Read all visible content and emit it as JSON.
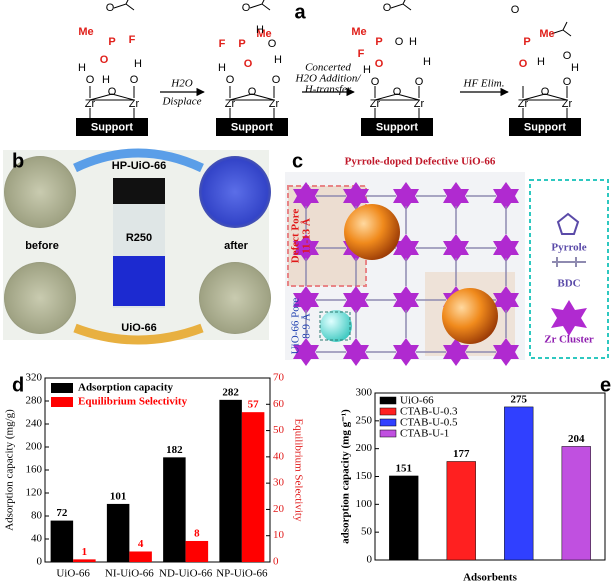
{
  "panel_a": {
    "label": "a",
    "structures": [
      {
        "atoms": [
          "Me",
          "P",
          "F",
          "O",
          "O",
          "H",
          "O",
          "H",
          "O",
          "H",
          "Zr",
          "Zr",
          "O"
        ],
        "support": "Support"
      },
      {
        "atoms": [
          "F",
          "P",
          "Me",
          "O",
          "O",
          "H",
          "O",
          "H",
          "O",
          "H",
          "O",
          "Zr",
          "Zr",
          "O"
        ],
        "support": "Support"
      },
      {
        "atoms": [
          "Me",
          "P",
          "F",
          "O",
          "O",
          "H",
          "O",
          "H",
          "O",
          "H",
          "O",
          "Zr",
          "Zr",
          "O"
        ],
        "support": "Support"
      },
      {
        "atoms": [
          "O",
          "P",
          "O",
          "Me",
          "H",
          "O",
          "H",
          "O",
          "Zr",
          "Zr",
          "O"
        ],
        "support": "Support"
      }
    ],
    "steps": [
      [
        "H2O",
        "Displace"
      ],
      [
        "Concerted",
        "H2O Addition/",
        "H-transfer"
      ],
      [
        "HF Elim."
      ]
    ]
  },
  "panel_b": {
    "label": "b",
    "top": "HP-UiO-66",
    "bottom": "UiO-66",
    "left": "before",
    "right": "after",
    "vial": "R250"
  },
  "panel_c": {
    "label": "c",
    "title": "Pyrrole-doped Defective UiO-66",
    "defect_pore": [
      "Defect Pore",
      "11-13 Å"
    ],
    "uio_pore": [
      "UiO-66 Pore",
      "8-9 Å"
    ],
    "legend": [
      "Pyrrole",
      "BDC",
      "Zr Cluster"
    ]
  },
  "chart_data": [
    {
      "type": "grouped_bar",
      "label": "d",
      "categories": [
        "UiO-66",
        "NI-UiO-66",
        "ND-UiO-66",
        "NP-UiO-66"
      ],
      "series": [
        {
          "name": "Adsorption capacity",
          "color": "#000000",
          "values": [
            72,
            101,
            182,
            282
          ]
        },
        {
          "name": "Equilibrium Selectivity",
          "color": "#ff0000",
          "values": [
            1,
            4,
            8,
            57
          ],
          "axis": "y2"
        }
      ],
      "y_label": "Adsorption capacity (mg/g)",
      "y2_label": "Equilibrium Selectivity",
      "ylim": [
        0,
        320
      ],
      "yticks": [
        0,
        40,
        80,
        120,
        160,
        200,
        240,
        280,
        320
      ],
      "y2lim": [
        0,
        70
      ],
      "y2ticks": [
        0,
        10,
        20,
        30,
        40,
        50,
        60,
        70
      ],
      "legend": "upper left"
    },
    {
      "type": "bar",
      "label": "e",
      "categories": [
        null,
        null,
        null,
        null
      ],
      "series": [
        {
          "name": "UiO-66",
          "color": "#000000",
          "values": [
            151,
            null,
            null,
            null
          ]
        },
        {
          "name": "CTAB-U-0.3",
          "color": "#ff2020",
          "values": [
            null,
            177,
            null,
            null
          ]
        },
        {
          "name": "CTAB-U-0.5",
          "color": "#3040ff",
          "values": [
            null,
            null,
            275,
            null
          ]
        },
        {
          "name": "CTAB-U-1",
          "color": "#c050e0",
          "values": [
            null,
            null,
            null,
            204
          ]
        }
      ],
      "x_label": "Adsorbents",
      "y_label": "adsorption capacity (mg g⁻¹)",
      "ylim": [
        0,
        300
      ],
      "yticks": [
        0,
        50,
        100,
        150,
        200,
        250,
        300
      ],
      "legend": "upper left"
    }
  ]
}
